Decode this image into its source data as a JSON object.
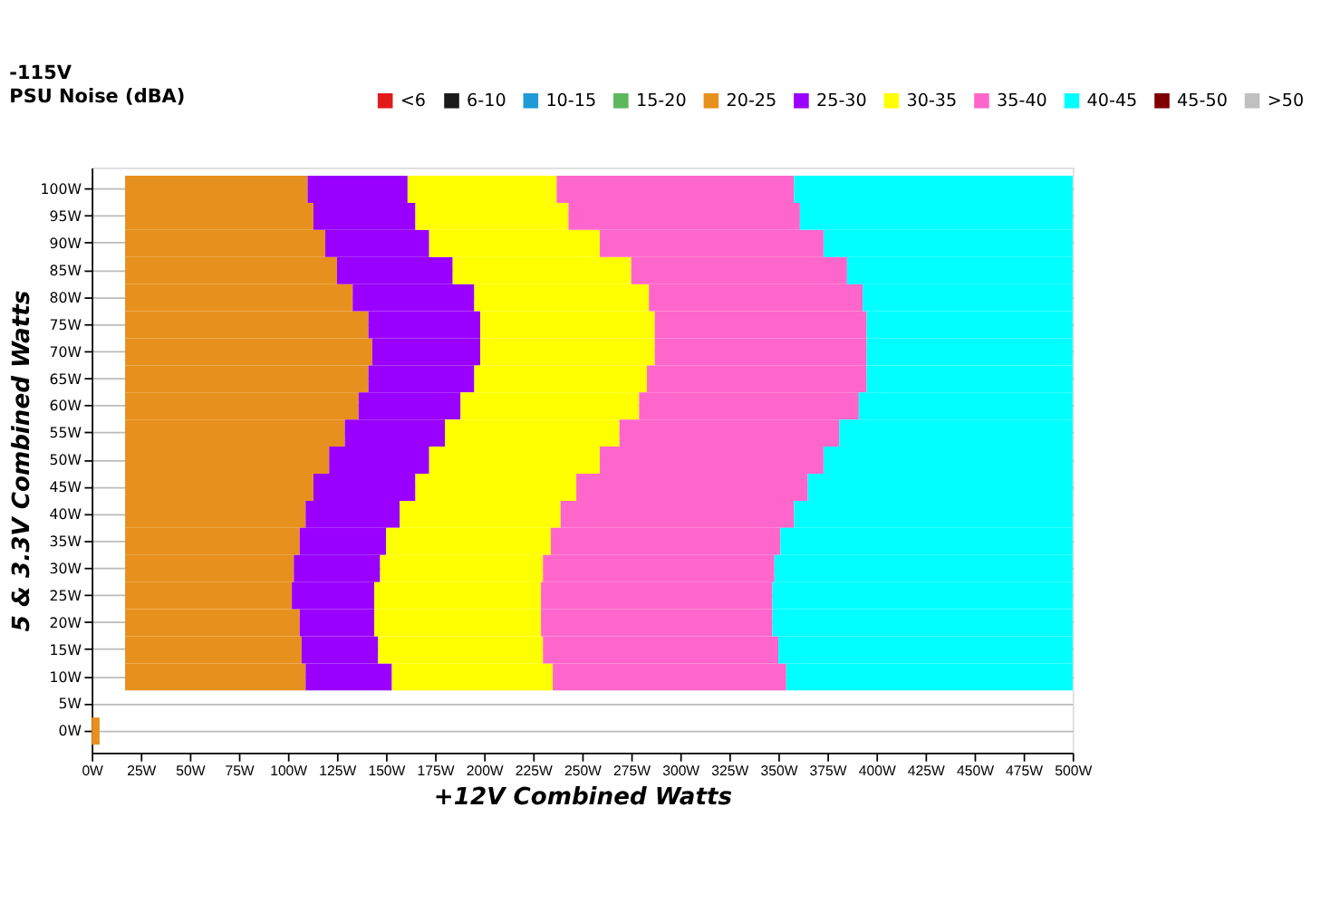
{
  "chart_data": {
    "type": "bar",
    "orientation": "horizontal",
    "title": "-115V",
    "subtitle": "PSU Noise (dBA)",
    "xlabel": "+12V Combined Watts",
    "ylabel": "5 & 3.3V Combined Watts",
    "categories": [
      "100W",
      "95W",
      "90W",
      "85W",
      "80W",
      "75W",
      "70W",
      "65W",
      "60W",
      "55W",
      "50W",
      "45W",
      "40W",
      "35W",
      "30W",
      "25W",
      "20W",
      "15W",
      "10W",
      "5W",
      "0W"
    ],
    "series": [
      {
        "name": "<6",
        "color": "#e31a1c",
        "values": [
          null,
          null,
          null,
          null,
          null,
          null,
          null,
          null,
          null,
          null,
          null,
          null,
          null,
          null,
          null,
          null,
          null,
          null,
          null,
          null,
          null
        ]
      },
      {
        "name": "6-10",
        "color": "#1a1a1a",
        "values": [
          null,
          null,
          null,
          null,
          null,
          null,
          null,
          null,
          null,
          null,
          null,
          null,
          null,
          null,
          null,
          null,
          null,
          null,
          null,
          null,
          null
        ]
      },
      {
        "name": "10-15",
        "color": "#1e9bd7",
        "values": [
          null,
          null,
          null,
          null,
          null,
          null,
          null,
          null,
          null,
          null,
          null,
          null,
          null,
          null,
          null,
          null,
          null,
          null,
          null,
          null,
          null
        ]
      },
      {
        "name": "15-20",
        "color": "#5cb85c",
        "values": [
          null,
          null,
          null,
          null,
          null,
          null,
          null,
          null,
          null,
          null,
          null,
          null,
          null,
          null,
          null,
          null,
          null,
          null,
          null,
          null,
          null
        ]
      },
      {
        "name": "20-25",
        "color": "#e8901e",
        "base": [
          17,
          17,
          17,
          17,
          17,
          17,
          17,
          17,
          17,
          17,
          17,
          17,
          17,
          17,
          17,
          17,
          17,
          17,
          17,
          null,
          0
        ],
        "values": [
          93,
          96,
          102,
          108,
          116,
          124,
          126,
          124,
          119,
          112,
          104,
          96,
          92,
          89,
          86,
          85,
          89,
          90,
          92,
          null,
          4
        ]
      },
      {
        "name": "25-30",
        "color": "#9900ff",
        "base": [
          110,
          113,
          119,
          125,
          133,
          141,
          143,
          141,
          136,
          129,
          121,
          113,
          109,
          106,
          103,
          102,
          106,
          107,
          109,
          null,
          null
        ],
        "values": [
          51,
          52,
          53,
          59,
          62,
          57,
          55,
          54,
          52,
          51,
          51,
          52,
          48,
          44,
          44,
          42,
          38,
          39,
          44,
          null,
          null
        ]
      },
      {
        "name": "30-35",
        "color": "#ffff00",
        "base": [
          161,
          165,
          172,
          184,
          195,
          198,
          198,
          195,
          188,
          180,
          172,
          165,
          157,
          150,
          147,
          144,
          144,
          146,
          153,
          null,
          null
        ],
        "values": [
          76,
          78,
          87,
          91,
          89,
          89,
          89,
          88,
          91,
          89,
          87,
          82,
          82,
          84,
          83,
          85,
          85,
          84,
          82,
          null,
          null
        ]
      },
      {
        "name": "35-40",
        "color": "#ff66cc",
        "base": [
          237,
          243,
          259,
          275,
          284,
          287,
          287,
          283,
          279,
          269,
          259,
          247,
          239,
          234,
          230,
          229,
          229,
          230,
          235,
          null,
          null
        ],
        "values": [
          121,
          118,
          114,
          110,
          109,
          108,
          108,
          112,
          112,
          112,
          114,
          118,
          119,
          117,
          118,
          118,
          118,
          120,
          119,
          null,
          null
        ]
      },
      {
        "name": "40-45",
        "color": "#00ffff",
        "base": [
          358,
          361,
          373,
          385,
          393,
          395,
          395,
          395,
          391,
          381,
          373,
          365,
          358,
          351,
          348,
          347,
          347,
          350,
          354,
          null,
          null
        ],
        "values": [
          142,
          139,
          127,
          115,
          107,
          105,
          105,
          105,
          109,
          119,
          127,
          135,
          142,
          149,
          152,
          153,
          153,
          150,
          146,
          null,
          null
        ]
      },
      {
        "name": "45-50",
        "color": "#800000",
        "values": [
          null,
          null,
          null,
          null,
          null,
          null,
          null,
          null,
          null,
          null,
          null,
          null,
          null,
          null,
          null,
          null,
          null,
          null,
          null,
          null,
          null
        ]
      },
      {
        "name": ">50",
        "color": "#c0c0c0",
        "values": [
          null,
          null,
          null,
          null,
          null,
          null,
          null,
          null,
          null,
          null,
          null,
          null,
          null,
          null,
          null,
          null,
          null,
          null,
          null,
          null,
          null
        ]
      }
    ],
    "xlim": [
      0,
      500
    ],
    "xticks": [
      {
        "value": 0,
        "label": "0W"
      },
      {
        "value": 25,
        "label": "25W"
      },
      {
        "value": 50,
        "label": "50W"
      },
      {
        "value": 75,
        "label": "75W"
      },
      {
        "value": 100,
        "label": "100W"
      },
      {
        "value": 125,
        "label": "125W"
      },
      {
        "value": 150,
        "label": "150W"
      },
      {
        "value": 175,
        "label": "175W"
      },
      {
        "value": 200,
        "label": "200W"
      },
      {
        "value": 225,
        "label": "225W"
      },
      {
        "value": 250,
        "label": "250W"
      },
      {
        "value": 275,
        "label": "275W"
      },
      {
        "value": 300,
        "label": "300W"
      },
      {
        "value": 325,
        "label": "325W"
      },
      {
        "value": 350,
        "label": "350W"
      },
      {
        "value": 375,
        "label": "375W"
      },
      {
        "value": 400,
        "label": "400W"
      },
      {
        "value": 425,
        "label": "425W"
      },
      {
        "value": 450,
        "label": "450W"
      },
      {
        "value": 475,
        "label": "475W"
      },
      {
        "value": 500,
        "label": "500W"
      }
    ],
    "grid": "y",
    "legend": "top right"
  }
}
